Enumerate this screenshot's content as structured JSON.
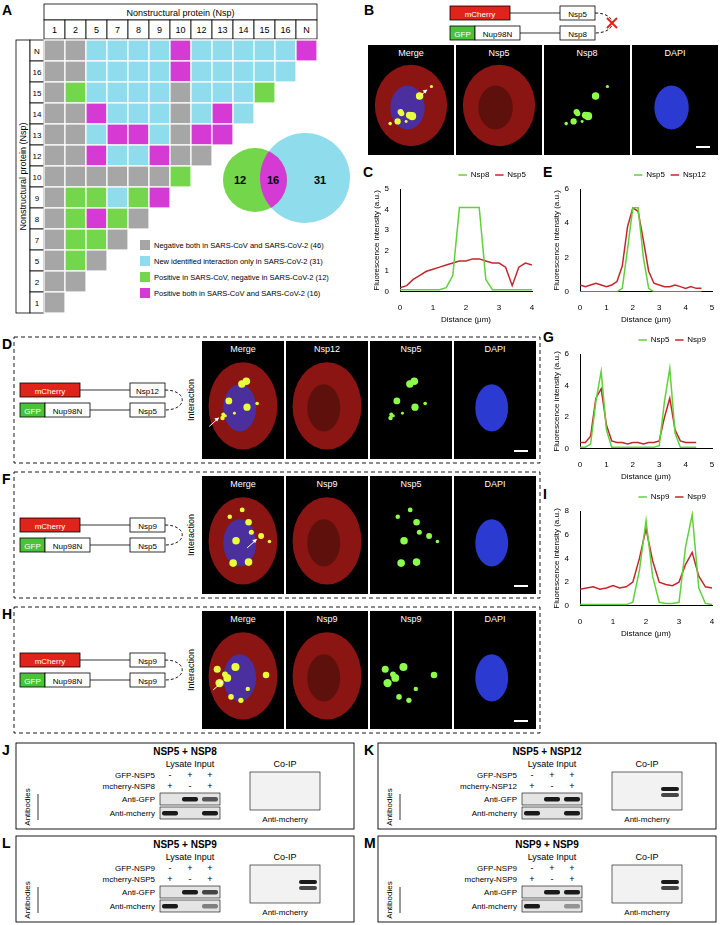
{
  "matrix": {
    "panel": "A",
    "column_title": "Nonstructural protein (Nsp)",
    "row_title": "Nonstructural protein (Nsp)",
    "columns": [
      "1",
      "2",
      "5",
      "7",
      "8",
      "9",
      "10",
      "12",
      "13",
      "14",
      "15",
      "16",
      "N"
    ],
    "rows": [
      "N",
      "16",
      "15",
      "14",
      "13",
      "12",
      "10",
      "9",
      "8",
      "7",
      "5",
      "2",
      "1"
    ],
    "cells": [
      [
        "neg",
        "neg",
        "new",
        "new",
        "new",
        "new",
        "both",
        "new",
        "new",
        "new",
        "new",
        "new",
        "both"
      ],
      [
        "neg",
        "neg",
        "new",
        "new",
        "new",
        "new",
        "both",
        "new",
        "new",
        "new",
        "new",
        "new"
      ],
      [
        "neg",
        "cov",
        "new",
        "new",
        "new",
        "new",
        "neg",
        "new",
        "new",
        "new",
        "cov"
      ],
      [
        "neg",
        "neg",
        "both",
        "new",
        "new",
        "new",
        "neg",
        "new",
        "both",
        "new"
      ],
      [
        "neg",
        "neg",
        "new",
        "both",
        "both",
        "new",
        "neg",
        "both",
        "both"
      ],
      [
        "neg",
        "neg",
        "both",
        "new",
        "new",
        "both",
        "neg",
        "neg"
      ],
      [
        "neg",
        "neg",
        "neg",
        "neg",
        "neg",
        "neg",
        "cov"
      ],
      [
        "neg",
        "cov",
        "cov",
        "new",
        "cov",
        "both"
      ],
      [
        "neg",
        "cov",
        "both",
        "cov",
        "neg"
      ],
      [
        "neg",
        "cov",
        "cov",
        "neg"
      ],
      [
        "neg",
        "cov",
        "neg"
      ],
      [
        "neg",
        "neg"
      ],
      [
        "neg"
      ]
    ],
    "legend": [
      {
        "key": "neg",
        "label": "Negative both in SARS-CoV and SARS-CoV-2 (46)",
        "color": "#a6a6a6"
      },
      {
        "key": "new",
        "label": "New identified interaction only in SARS-CoV-2 (31)",
        "color": "#8fdcec"
      },
      {
        "key": "cov",
        "label": "Positive in SARS-CoV, negative in SARS-CoV-2 (12)",
        "color": "#74d64a"
      },
      {
        "key": "both",
        "label": "Positive both in SARS-CoV and SARS-CoV-2 (16)",
        "color": "#d63ad4"
      }
    ],
    "venn": {
      "left": 12,
      "center": 16,
      "right": 31
    }
  },
  "localization": {
    "panel": "B",
    "constructs": [
      [
        "mCherry",
        "Nsp5"
      ],
      [
        "GFP",
        "Nup98N",
        "Nsp8"
      ]
    ],
    "interaction": false,
    "channels": [
      "Merge",
      "Nsp5",
      "Nsp8",
      "DAPI"
    ]
  },
  "interaction_panels": [
    {
      "panel": "D",
      "constructs": [
        [
          "mCherry",
          "Nsp12"
        ],
        [
          "GFP",
          "Nup98N",
          "Nsp5"
        ]
      ],
      "interaction": true,
      "interaction_label": "Interaction",
      "channels": [
        "Merge",
        "Nsp12",
        "Nsp5",
        "DAPI"
      ]
    },
    {
      "panel": "F",
      "constructs": [
        [
          "mCherry",
          "Nsp9"
        ],
        [
          "GFP",
          "Nup98N",
          "Nsp5"
        ]
      ],
      "interaction": true,
      "interaction_label": "Interaction",
      "channels": [
        "Merge",
        "Nsp9",
        "Nsp5",
        "DAPI"
      ]
    },
    {
      "panel": "H",
      "constructs": [
        [
          "mCherry",
          "Nsp9"
        ],
        [
          "GFP",
          "Nup98N",
          "Nsp9"
        ]
      ],
      "interaction": true,
      "interaction_label": "Interaction",
      "channels": [
        "Merge",
        "Nsp9",
        "Nsp9",
        "DAPI"
      ]
    }
  ],
  "blots": [
    {
      "panel": "J",
      "title": "NSP5 + NSP8",
      "input_label": "Lysate Input",
      "coip_label": "Co-IP",
      "antibodies_label": "Antibodies",
      "conditions": [
        {
          "name": "GFP-NSP5",
          "signs": [
            "-",
            "+",
            "+"
          ]
        },
        {
          "name": "mcherry-NSP8",
          "signs": [
            "+",
            "-",
            "+"
          ]
        }
      ],
      "input_blots": [
        {
          "antibody": "Anti-GFP",
          "bands": [
            0,
            1,
            0.7
          ]
        },
        {
          "antibody": "Anti-mcherry",
          "bands": [
            1,
            0,
            1
          ]
        }
      ],
      "coip_blot": {
        "antibody": "Anti-mcherry",
        "bands": [
          0,
          0,
          0
        ]
      }
    },
    {
      "panel": "K",
      "title": "NSP5 + NSP12",
      "input_label": "Lysate Input",
      "coip_label": "Co-IP",
      "antibodies_label": "Antibodies",
      "conditions": [
        {
          "name": "GFP-NSP5",
          "signs": [
            "-",
            "+",
            "+"
          ]
        },
        {
          "name": "mcherry-NSP12",
          "signs": [
            "+",
            "-",
            "+"
          ]
        }
      ],
      "input_blots": [
        {
          "antibody": "Anti-GFP",
          "bands": [
            0,
            1,
            1
          ]
        },
        {
          "antibody": "Anti-mcherry",
          "bands": [
            1,
            0,
            1
          ]
        }
      ],
      "coip_blot": {
        "antibody": "Anti-mcherry",
        "bands": [
          0,
          0,
          1
        ]
      }
    },
    {
      "panel": "L",
      "title": "NSP5 + NSP9",
      "input_label": "Lysate Input",
      "coip_label": "Co-IP",
      "antibodies_label": "Antibodies",
      "conditions": [
        {
          "name": "GFP-NSP9",
          "signs": [
            "-",
            "+",
            "+"
          ]
        },
        {
          "name": "mcherry-NSP5",
          "signs": [
            "+",
            "-",
            "+"
          ]
        }
      ],
      "input_blots": [
        {
          "antibody": "Anti-GFP",
          "bands": [
            0,
            1,
            0.8
          ]
        },
        {
          "antibody": "Anti-mcherry",
          "bands": [
            1,
            0,
            0.5
          ]
        }
      ],
      "coip_blot": {
        "antibody": "Anti-mcherry",
        "bands": [
          0,
          0,
          1
        ]
      }
    },
    {
      "panel": "M",
      "title": "NSP9 + NSP9",
      "input_label": "Lysate Input",
      "coip_label": "Co-IP",
      "antibodies_label": "Antibodies",
      "conditions": [
        {
          "name": "GFP-NSP9",
          "signs": [
            "-",
            "+",
            "+"
          ]
        },
        {
          "name": "mcherry-NSP9",
          "signs": [
            "+",
            "-",
            "+"
          ]
        }
      ],
      "input_blots": [
        {
          "antibody": "Anti-GFP",
          "bands": [
            0,
            1,
            1
          ]
        },
        {
          "antibody": "Anti-mcherry",
          "bands": [
            1,
            0,
            0.4
          ]
        }
      ],
      "coip_blot": {
        "antibody": "Anti-mcherry",
        "bands": [
          0,
          0,
          1
        ]
      }
    }
  ],
  "chart_data": [
    {
      "panel": "C",
      "type": "line",
      "xlabel": "Distance (μm)",
      "ylabel": "Fluorescence intensity (a.u.)",
      "x": [
        0,
        0.2,
        0.4,
        0.6,
        0.8,
        1,
        1.2,
        1.4,
        1.6,
        1.8,
        2,
        2.2,
        2.4,
        2.6,
        2.8,
        3,
        3.2,
        3.4,
        3.6,
        3.8,
        4
      ],
      "series": [
        {
          "name": "Nsp8",
          "color": "#5fd13a",
          "values": [
            0.1,
            0.1,
            0.1,
            0.1,
            0.1,
            0.1,
            0.1,
            0.2,
            0.8,
            4.1,
            4.1,
            4.1,
            4.1,
            0.6,
            0.1,
            0.1,
            0.1,
            0.1,
            0.1,
            0.1,
            0.1
          ]
        },
        {
          "name": "Nsp5",
          "color": "#c0282d",
          "values": [
            0.2,
            0.3,
            0.6,
            0.8,
            1.0,
            1.1,
            1.2,
            1.3,
            1.4,
            1.5,
            1.5,
            1.6,
            1.6,
            1.5,
            1.4,
            1.4,
            1.2,
            0.3,
            1.2,
            1.4,
            1.3
          ]
        }
      ],
      "xlim": [
        0,
        4
      ],
      "xticks": [
        0,
        1,
        2,
        3,
        4
      ],
      "ylim": [
        0,
        5
      ],
      "yticks": [
        0,
        1,
        2,
        3,
        4,
        5
      ],
      "grid": false,
      "legend": "top"
    },
    {
      "panel": "E",
      "type": "line",
      "xlabel": "Distance (μm)",
      "ylabel": "Fluorescence intensity (a.u.)",
      "x": [
        0,
        0.2,
        0.4,
        0.6,
        0.8,
        1,
        1.2,
        1.4,
        1.6,
        1.8,
        2,
        2.2,
        2.4,
        2.6,
        2.8,
        3,
        3.2,
        3.4,
        3.6,
        3.8,
        4,
        4.2,
        4.4,
        4.6
      ],
      "series": [
        {
          "name": "Nsp5",
          "color": "#5fd13a",
          "values": [
            0,
            0,
            0,
            0,
            0,
            0,
            0,
            0,
            0.2,
            2.5,
            4.9,
            4.9,
            2.0,
            0.2,
            0,
            0,
            0,
            0,
            0,
            0,
            0,
            0,
            0,
            0
          ]
        },
        {
          "name": "Nsp12",
          "color": "#c0282d",
          "values": [
            0.4,
            0.3,
            0.4,
            0.5,
            0.4,
            0.3,
            0.4,
            0.6,
            1.5,
            3.8,
            4.9,
            4.7,
            3.0,
            1.2,
            0.5,
            0.4,
            0.3,
            0.3,
            0.4,
            0.3,
            0.2,
            0.3,
            0.2,
            0.2
          ]
        }
      ],
      "xlim": [
        0,
        5
      ],
      "xticks": [
        0,
        1,
        2,
        3,
        4,
        5
      ],
      "ylim": [
        0,
        6
      ],
      "yticks": [
        0,
        2,
        4,
        6
      ],
      "grid": false,
      "legend": "top"
    },
    {
      "panel": "G",
      "type": "line",
      "xlabel": "Distance (μm)",
      "ylabel": "Fluorescence intensity (a.u.)",
      "x": [
        0,
        0.2,
        0.4,
        0.6,
        0.8,
        1,
        1.2,
        1.4,
        1.6,
        1.8,
        2,
        2.2,
        2.4,
        2.6,
        2.8,
        3,
        3.2,
        3.4,
        3.6,
        3.8,
        4,
        4.2,
        4.4
      ],
      "series": [
        {
          "name": "Nsp5",
          "color": "#5fd13a",
          "values": [
            0.1,
            0.1,
            0.3,
            3.0,
            4.9,
            1.2,
            0.1,
            0.1,
            0.1,
            0.1,
            0.1,
            0.1,
            0.1,
            0.1,
            0.1,
            0.2,
            3.0,
            5.1,
            1.0,
            0.1,
            0.1,
            0.1,
            0.1
          ]
        },
        {
          "name": "Nsp9",
          "color": "#c0282d",
          "values": [
            0.4,
            0.4,
            0.8,
            3.2,
            3.8,
            1.5,
            0.5,
            0.4,
            0.4,
            0.3,
            0.4,
            0.4,
            0.3,
            0.4,
            0.4,
            0.5,
            2.0,
            3.2,
            1.2,
            0.5,
            0.4,
            0.4,
            0.4
          ]
        }
      ],
      "xlim": [
        0,
        5
      ],
      "xticks": [
        0,
        1,
        2,
        3,
        4,
        5
      ],
      "ylim": [
        0,
        6
      ],
      "yticks": [
        0,
        2,
        4,
        6
      ],
      "grid": false,
      "legend": "top"
    },
    {
      "panel": "I",
      "type": "line",
      "xlabel": "Distance (μm)",
      "ylabel": "Fluorescence intensity (a.u.)",
      "x": [
        0,
        0.2,
        0.4,
        0.6,
        0.8,
        1,
        1.2,
        1.4,
        1.6,
        1.8,
        2,
        2.2,
        2.4,
        2.6,
        2.8,
        3,
        3.2,
        3.4,
        3.6,
        3.8,
        4
      ],
      "series": [
        {
          "name": "Nsp9",
          "color": "#5fd13a",
          "values": [
            0.1,
            0.1,
            0.1,
            0.1,
            0.1,
            0.1,
            0.1,
            0.1,
            0.3,
            3.0,
            7.2,
            2.5,
            0.3,
            0.2,
            0.2,
            0.3,
            5.0,
            7.7,
            1.5,
            0.2,
            0.1
          ]
        },
        {
          "name": "Nsp9",
          "color": "#c0282d",
          "values": [
            1.4,
            1.5,
            1.6,
            1.4,
            1.5,
            1.7,
            1.5,
            1.6,
            2.0,
            4.0,
            6.5,
            3.8,
            2.0,
            1.8,
            1.7,
            2.0,
            3.5,
            4.5,
            2.5,
            1.6,
            1.5
          ]
        }
      ],
      "xlim": [
        0,
        4
      ],
      "xticks": [
        0,
        1,
        2,
        3,
        4
      ],
      "ylim": [
        0,
        8
      ],
      "yticks": [
        0,
        2,
        4,
        6,
        8
      ],
      "grid": false,
      "legend": "top"
    }
  ]
}
